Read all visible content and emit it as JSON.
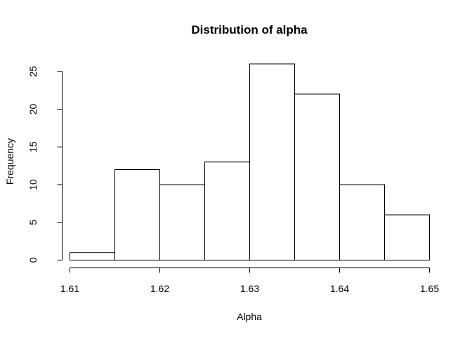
{
  "chart_data": {
    "type": "bar",
    "title": "Distribution of alpha",
    "xlabel": "Alpha",
    "ylabel": "Frequency",
    "bins": [
      {
        "start": 1.61,
        "end": 1.615,
        "count": 1
      },
      {
        "start": 1.615,
        "end": 1.62,
        "count": 12
      },
      {
        "start": 1.62,
        "end": 1.625,
        "count": 10
      },
      {
        "start": 1.625,
        "end": 1.63,
        "count": 13
      },
      {
        "start": 1.63,
        "end": 1.635,
        "count": 26
      },
      {
        "start": 1.635,
        "end": 1.64,
        "count": 22
      },
      {
        "start": 1.64,
        "end": 1.645,
        "count": 10
      },
      {
        "start": 1.645,
        "end": 1.65,
        "count": 6
      }
    ],
    "xlim": [
      1.61,
      1.65
    ],
    "ylim": [
      0,
      26
    ],
    "x_ticks": [
      "1.61",
      "1.62",
      "1.63",
      "1.64",
      "1.65"
    ],
    "y_ticks": [
      "0",
      "5",
      "10",
      "15",
      "20",
      "25"
    ],
    "grid": false,
    "legend": "none"
  },
  "colors": {
    "bar_fill": "#ffffff",
    "bar_stroke": "#000000",
    "background": "#ffffff"
  }
}
